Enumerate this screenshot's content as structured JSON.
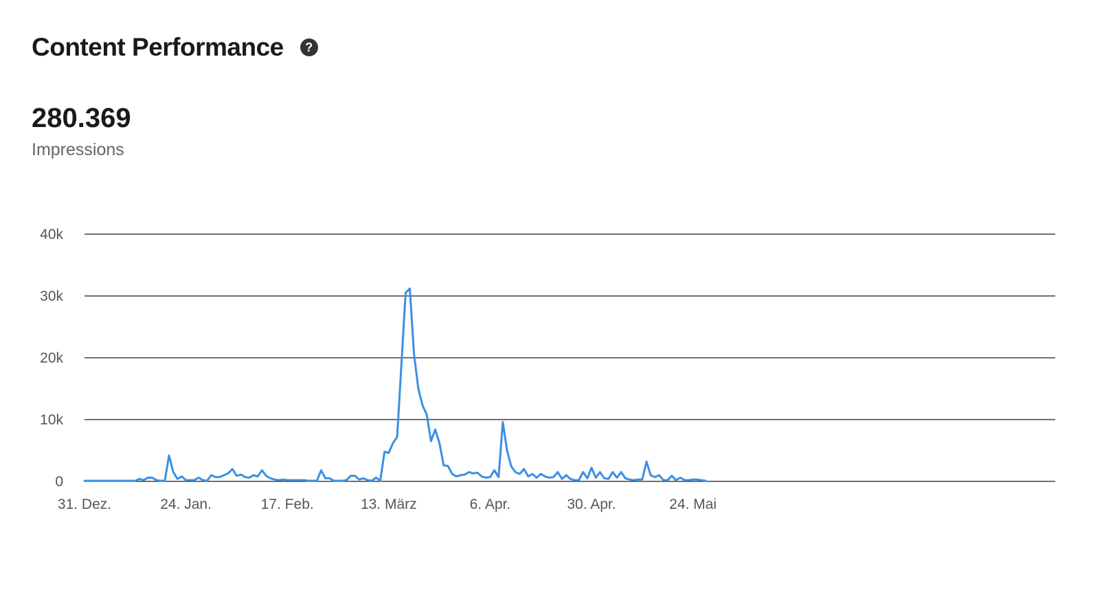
{
  "header": {
    "title": "Content Performance",
    "help_icon": "question-circle-icon",
    "help_glyph": "?"
  },
  "metric": {
    "value": "280.369",
    "label": "Impressions"
  },
  "colors": {
    "line": "#3b8fe3",
    "grid": "#1a1a1a",
    "tick_text": "#555555"
  },
  "chart_data": {
    "type": "line",
    "title": "",
    "xlabel": "",
    "ylabel": "",
    "ylim": [
      0,
      40000
    ],
    "yticks": [
      {
        "value": 0,
        "label": "0"
      },
      {
        "value": 10000,
        "label": "10k"
      },
      {
        "value": 20000,
        "label": "20k"
      },
      {
        "value": 30000,
        "label": "30k"
      },
      {
        "value": 40000,
        "label": "40k"
      }
    ],
    "xticks": [
      {
        "date": "2018-12-31",
        "label": "31. Dez."
      },
      {
        "date": "2019-01-24",
        "label": "24. Jan."
      },
      {
        "date": "2019-02-17",
        "label": "17. Feb."
      },
      {
        "date": "2019-03-13",
        "label": "13. März"
      },
      {
        "date": "2019-04-06",
        "label": "6. Apr."
      },
      {
        "date": "2019-04-30",
        "label": "30. Apr."
      },
      {
        "date": "2019-05-24",
        "label": "24. Mai"
      }
    ],
    "grid": true,
    "legend": "none",
    "series": [
      {
        "points": [
          [
            "2018-12-31",
            100
          ],
          [
            "2019-01-05",
            100
          ],
          [
            "2019-01-10",
            100
          ],
          [
            "2019-01-12",
            100
          ],
          [
            "2019-01-13",
            400
          ],
          [
            "2019-01-14",
            200
          ],
          [
            "2019-01-15",
            600
          ],
          [
            "2019-01-16",
            600
          ],
          [
            "2019-01-17",
            200
          ],
          [
            "2019-01-18",
            100
          ],
          [
            "2019-01-19",
            100
          ],
          [
            "2019-01-20",
            4200
          ],
          [
            "2019-01-21",
            1500
          ],
          [
            "2019-01-22",
            400
          ],
          [
            "2019-01-23",
            800
          ],
          [
            "2019-01-24",
            200
          ],
          [
            "2019-01-25",
            200
          ],
          [
            "2019-01-26",
            200
          ],
          [
            "2019-01-27",
            600
          ],
          [
            "2019-01-28",
            200
          ],
          [
            "2019-01-29",
            100
          ],
          [
            "2019-01-30",
            1000
          ],
          [
            "2019-01-31",
            700
          ],
          [
            "2019-02-01",
            700
          ],
          [
            "2019-02-02",
            1000
          ],
          [
            "2019-02-03",
            1300
          ],
          [
            "2019-02-04",
            2000
          ],
          [
            "2019-02-05",
            900
          ],
          [
            "2019-02-06",
            1100
          ],
          [
            "2019-02-07",
            700
          ],
          [
            "2019-02-08",
            600
          ],
          [
            "2019-02-09",
            1000
          ],
          [
            "2019-02-10",
            800
          ],
          [
            "2019-02-11",
            1800
          ],
          [
            "2019-02-12",
            900
          ],
          [
            "2019-02-13",
            500
          ],
          [
            "2019-02-14",
            300
          ],
          [
            "2019-02-15",
            200
          ],
          [
            "2019-02-16",
            300
          ],
          [
            "2019-02-17",
            200
          ],
          [
            "2019-02-18",
            200
          ],
          [
            "2019-02-19",
            200
          ],
          [
            "2019-02-20",
            200
          ],
          [
            "2019-02-21",
            200
          ],
          [
            "2019-02-22",
            100
          ],
          [
            "2019-02-23",
            100
          ],
          [
            "2019-02-24",
            100
          ],
          [
            "2019-02-25",
            1800
          ],
          [
            "2019-02-26",
            500
          ],
          [
            "2019-02-27",
            500
          ],
          [
            "2019-02-28",
            100
          ],
          [
            "2019-03-01",
            100
          ],
          [
            "2019-03-02",
            100
          ],
          [
            "2019-03-03",
            200
          ],
          [
            "2019-03-04",
            900
          ],
          [
            "2019-03-05",
            900
          ],
          [
            "2019-03-06",
            300
          ],
          [
            "2019-03-07",
            500
          ],
          [
            "2019-03-08",
            200
          ],
          [
            "2019-03-09",
            100
          ],
          [
            "2019-03-10",
            600
          ],
          [
            "2019-03-11",
            100
          ],
          [
            "2019-03-12",
            4800
          ],
          [
            "2019-03-13",
            4600
          ],
          [
            "2019-03-14",
            6200
          ],
          [
            "2019-03-15",
            7200
          ],
          [
            "2019-03-16",
            19000
          ],
          [
            "2019-03-17",
            30500
          ],
          [
            "2019-03-18",
            31200
          ],
          [
            "2019-03-19",
            20500
          ],
          [
            "2019-03-20",
            15000
          ],
          [
            "2019-03-21",
            12300
          ],
          [
            "2019-03-22",
            10800
          ],
          [
            "2019-03-23",
            6500
          ],
          [
            "2019-03-24",
            8400
          ],
          [
            "2019-03-25",
            6200
          ],
          [
            "2019-03-26",
            2600
          ],
          [
            "2019-03-27",
            2500
          ],
          [
            "2019-03-28",
            1200
          ],
          [
            "2019-03-29",
            800
          ],
          [
            "2019-03-30",
            1000
          ],
          [
            "2019-03-31",
            1100
          ],
          [
            "2019-04-01",
            1500
          ],
          [
            "2019-04-02",
            1300
          ],
          [
            "2019-04-03",
            1400
          ],
          [
            "2019-04-04",
            800
          ],
          [
            "2019-04-05",
            600
          ],
          [
            "2019-04-06",
            700
          ],
          [
            "2019-04-07",
            1800
          ],
          [
            "2019-04-08",
            700
          ],
          [
            "2019-04-09",
            9600
          ],
          [
            "2019-04-10",
            5000
          ],
          [
            "2019-04-11",
            2400
          ],
          [
            "2019-04-12",
            1500
          ],
          [
            "2019-04-13",
            1200
          ],
          [
            "2019-04-14",
            2000
          ],
          [
            "2019-04-15",
            800
          ],
          [
            "2019-04-16",
            1200
          ],
          [
            "2019-04-17",
            600
          ],
          [
            "2019-04-18",
            1200
          ],
          [
            "2019-04-19",
            800
          ],
          [
            "2019-04-20",
            600
          ],
          [
            "2019-04-21",
            700
          ],
          [
            "2019-04-22",
            1500
          ],
          [
            "2019-04-23",
            400
          ],
          [
            "2019-04-24",
            1000
          ],
          [
            "2019-04-25",
            400
          ],
          [
            "2019-04-26",
            200
          ],
          [
            "2019-04-27",
            200
          ],
          [
            "2019-04-28",
            1500
          ],
          [
            "2019-04-29",
            500
          ],
          [
            "2019-04-30",
            2200
          ],
          [
            "2019-05-01",
            600
          ],
          [
            "2019-05-02",
            1500
          ],
          [
            "2019-05-03",
            500
          ],
          [
            "2019-05-04",
            400
          ],
          [
            "2019-05-05",
            1500
          ],
          [
            "2019-05-06",
            600
          ],
          [
            "2019-05-07",
            1500
          ],
          [
            "2019-05-08",
            500
          ],
          [
            "2019-05-09",
            300
          ],
          [
            "2019-05-10",
            200
          ],
          [
            "2019-05-11",
            300
          ],
          [
            "2019-05-12",
            300
          ],
          [
            "2019-05-13",
            3200
          ],
          [
            "2019-05-14",
            1000
          ],
          [
            "2019-05-15",
            700
          ],
          [
            "2019-05-16",
            1000
          ],
          [
            "2019-05-17",
            200
          ],
          [
            "2019-05-18",
            200
          ],
          [
            "2019-05-19",
            900
          ],
          [
            "2019-05-20",
            200
          ],
          [
            "2019-05-21",
            600
          ],
          [
            "2019-05-22",
            200
          ],
          [
            "2019-05-23",
            200
          ],
          [
            "2019-05-24",
            300
          ],
          [
            "2019-05-25",
            300
          ],
          [
            "2019-05-26",
            200
          ],
          [
            "2019-05-27",
            100
          ]
        ]
      }
    ]
  }
}
